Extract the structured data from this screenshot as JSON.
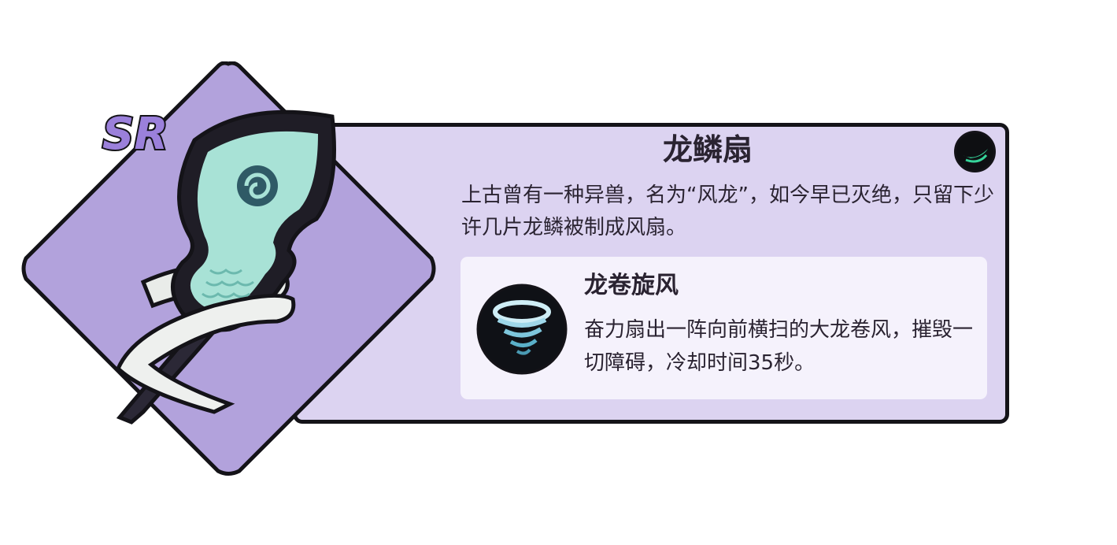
{
  "item": {
    "rarity": "SR",
    "name": "龙鳞扇",
    "description": "上古曾有一种异兽，名为“风龙”，如今早已灭绝，只留下少许几片龙鳞被制成风扇。",
    "element_icon": "wind-element-icon"
  },
  "skill": {
    "name": "龙卷旋风",
    "description": "奋力扇出一阵向前横扫的大龙卷风，摧毁一切障碍，冷却时间35秒。",
    "icon": "tornado-icon"
  },
  "colors": {
    "card_bg": "#dcd3f1",
    "diamond": "#b2a2dc",
    "outline": "#141318",
    "skill_panel": "#f5f2fc",
    "rarity_purple": "#9b80db",
    "fan_teal": "#a8e2d6",
    "wind_green": "#36d49a",
    "text": "#2a2331"
  }
}
